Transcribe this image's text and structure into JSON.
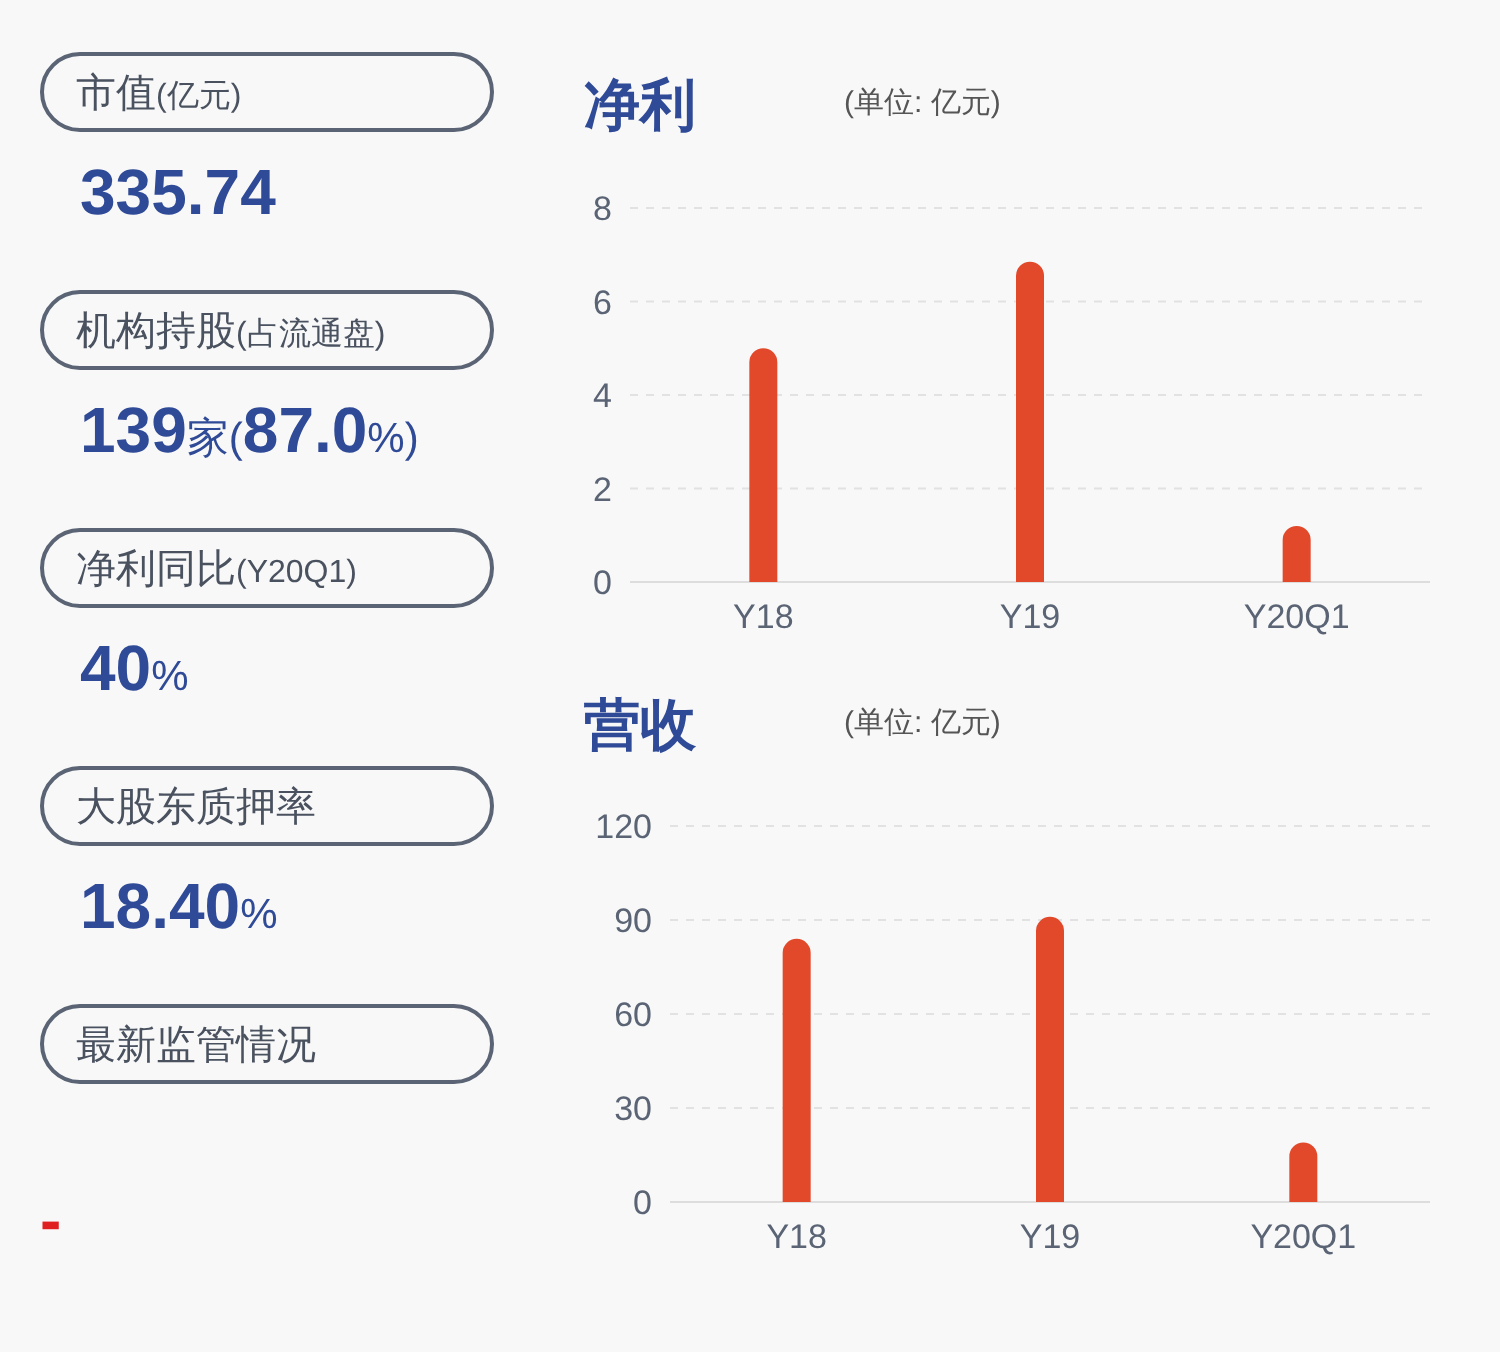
{
  "chart_data": [
    {
      "type": "other",
      "annotations": [
        "市值(亿元)",
        "335.74",
        "机构持股(占流通盘)",
        "139家(87.0%)",
        "净利同比(Y20Q1)",
        "40%",
        "大股东质押率",
        "18.40%",
        "最新监管情况",
        "-"
      ]
    },
    {
      "type": "bar",
      "title": "净利",
      "subtitle": "(单位: 亿元)",
      "categories": [
        "Y18",
        "Y19",
        "Y20Q1"
      ],
      "values": [
        5.0,
        6.85,
        1.2
      ],
      "color": "#e2492b",
      "ylim": [
        0,
        8
      ],
      "yticks": [
        0,
        2,
        4,
        6,
        8
      ],
      "grid": "y"
    },
    {
      "type": "bar",
      "title": "营收",
      "subtitle": "(单位: 亿元)",
      "categories": [
        "Y18",
        "Y19",
        "Y20Q1"
      ],
      "values": [
        84,
        91,
        19
      ],
      "color": "#e2492b",
      "ylim": [
        0,
        120
      ],
      "yticks": [
        0,
        30,
        60,
        90,
        120
      ],
      "grid": "y"
    }
  ]
}
